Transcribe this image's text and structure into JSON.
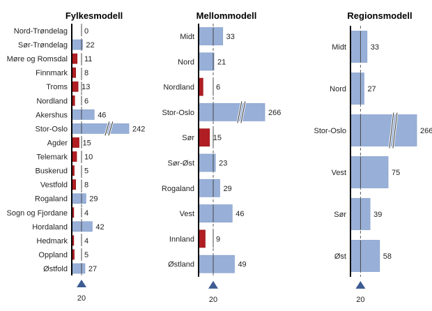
{
  "chart_data": [
    {
      "type": "bar",
      "orientation": "horizontal",
      "title": "Fylkesmodell",
      "categories": [
        "Nord-Trøndelag",
        "Sør-Trøndelag",
        "Møre og Romsdal",
        "Finnmark",
        "Troms",
        "Nordland",
        "Akershus",
        "Stor-Oslo",
        "Agder",
        "Telemark",
        "Buskerud",
        "Vestfold",
        "Rogaland",
        "Sogn og Fjordane",
        "Hordaland",
        "Hedmark",
        "Oppland",
        "Østfold"
      ],
      "values": [
        0,
        22,
        11,
        8,
        13,
        6,
        46,
        242,
        15,
        10,
        5,
        8,
        29,
        4,
        42,
        4,
        5,
        27
      ],
      "broken_axis_categories": [
        "Stor-Oslo"
      ],
      "reference_line": 20,
      "reference_label": "20"
    },
    {
      "type": "bar",
      "orientation": "horizontal",
      "title": "Mellommodell",
      "categories": [
        "Midt",
        "Nord",
        "Nordland",
        "Stor-Oslo",
        "Sør",
        "Sør-Øst",
        "Rogaland",
        "Vest",
        "Innland",
        "Østland"
      ],
      "values": [
        33,
        21,
        6,
        266,
        15,
        23,
        29,
        46,
        9,
        49
      ],
      "broken_axis_categories": [
        "Stor-Oslo"
      ],
      "reference_line": 20,
      "reference_label": "20"
    },
    {
      "type": "bar",
      "orientation": "horizontal",
      "title": "Regionsmodell",
      "categories": [
        "Midt",
        "Nord",
        "Stor-Oslo",
        "Vest",
        "Sør",
        "Øst"
      ],
      "values": [
        33,
        27,
        266,
        75,
        39,
        58
      ],
      "broken_axis_categories": [
        "Stor-Oslo"
      ],
      "reference_line": 20,
      "reference_label": "20"
    }
  ],
  "colors": {
    "above_reference": "#98b0d8",
    "below_reference": "#b01e23",
    "marker": "#3d5c92"
  }
}
